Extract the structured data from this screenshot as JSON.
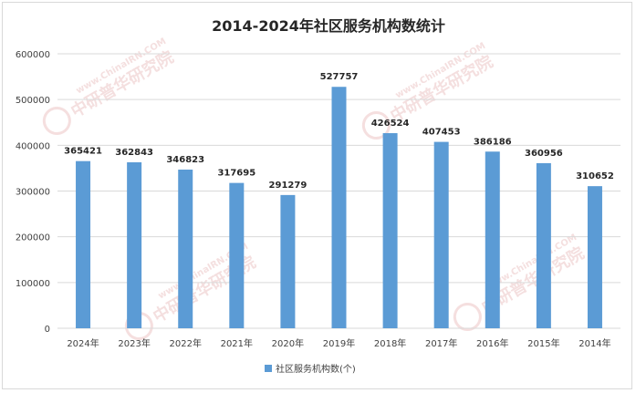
{
  "chart_data": {
    "type": "bar",
    "title": "2014-2024年社区服务机构数统计",
    "categories": [
      "2024年",
      "2023年",
      "2022年",
      "2021年",
      "2020年",
      "2019年",
      "2018年",
      "2017年",
      "2016年",
      "2015年",
      "2014年"
    ],
    "series": [
      {
        "name": "社区服务机构数(个)",
        "values": [
          365421,
          362843,
          346823,
          317695,
          291279,
          527757,
          426524,
          407453,
          386186,
          360956,
          310652
        ],
        "color": "#5b9bd5"
      }
    ],
    "ylim": [
      0,
      600000
    ],
    "yticks": [
      0,
      100000,
      200000,
      300000,
      400000,
      500000,
      600000
    ],
    "grid": true,
    "legend_position": "bottom",
    "data_labels": true
  },
  "watermark": {
    "text": "中研普华研究院",
    "url": "www.ChinaIRN.COM"
  }
}
